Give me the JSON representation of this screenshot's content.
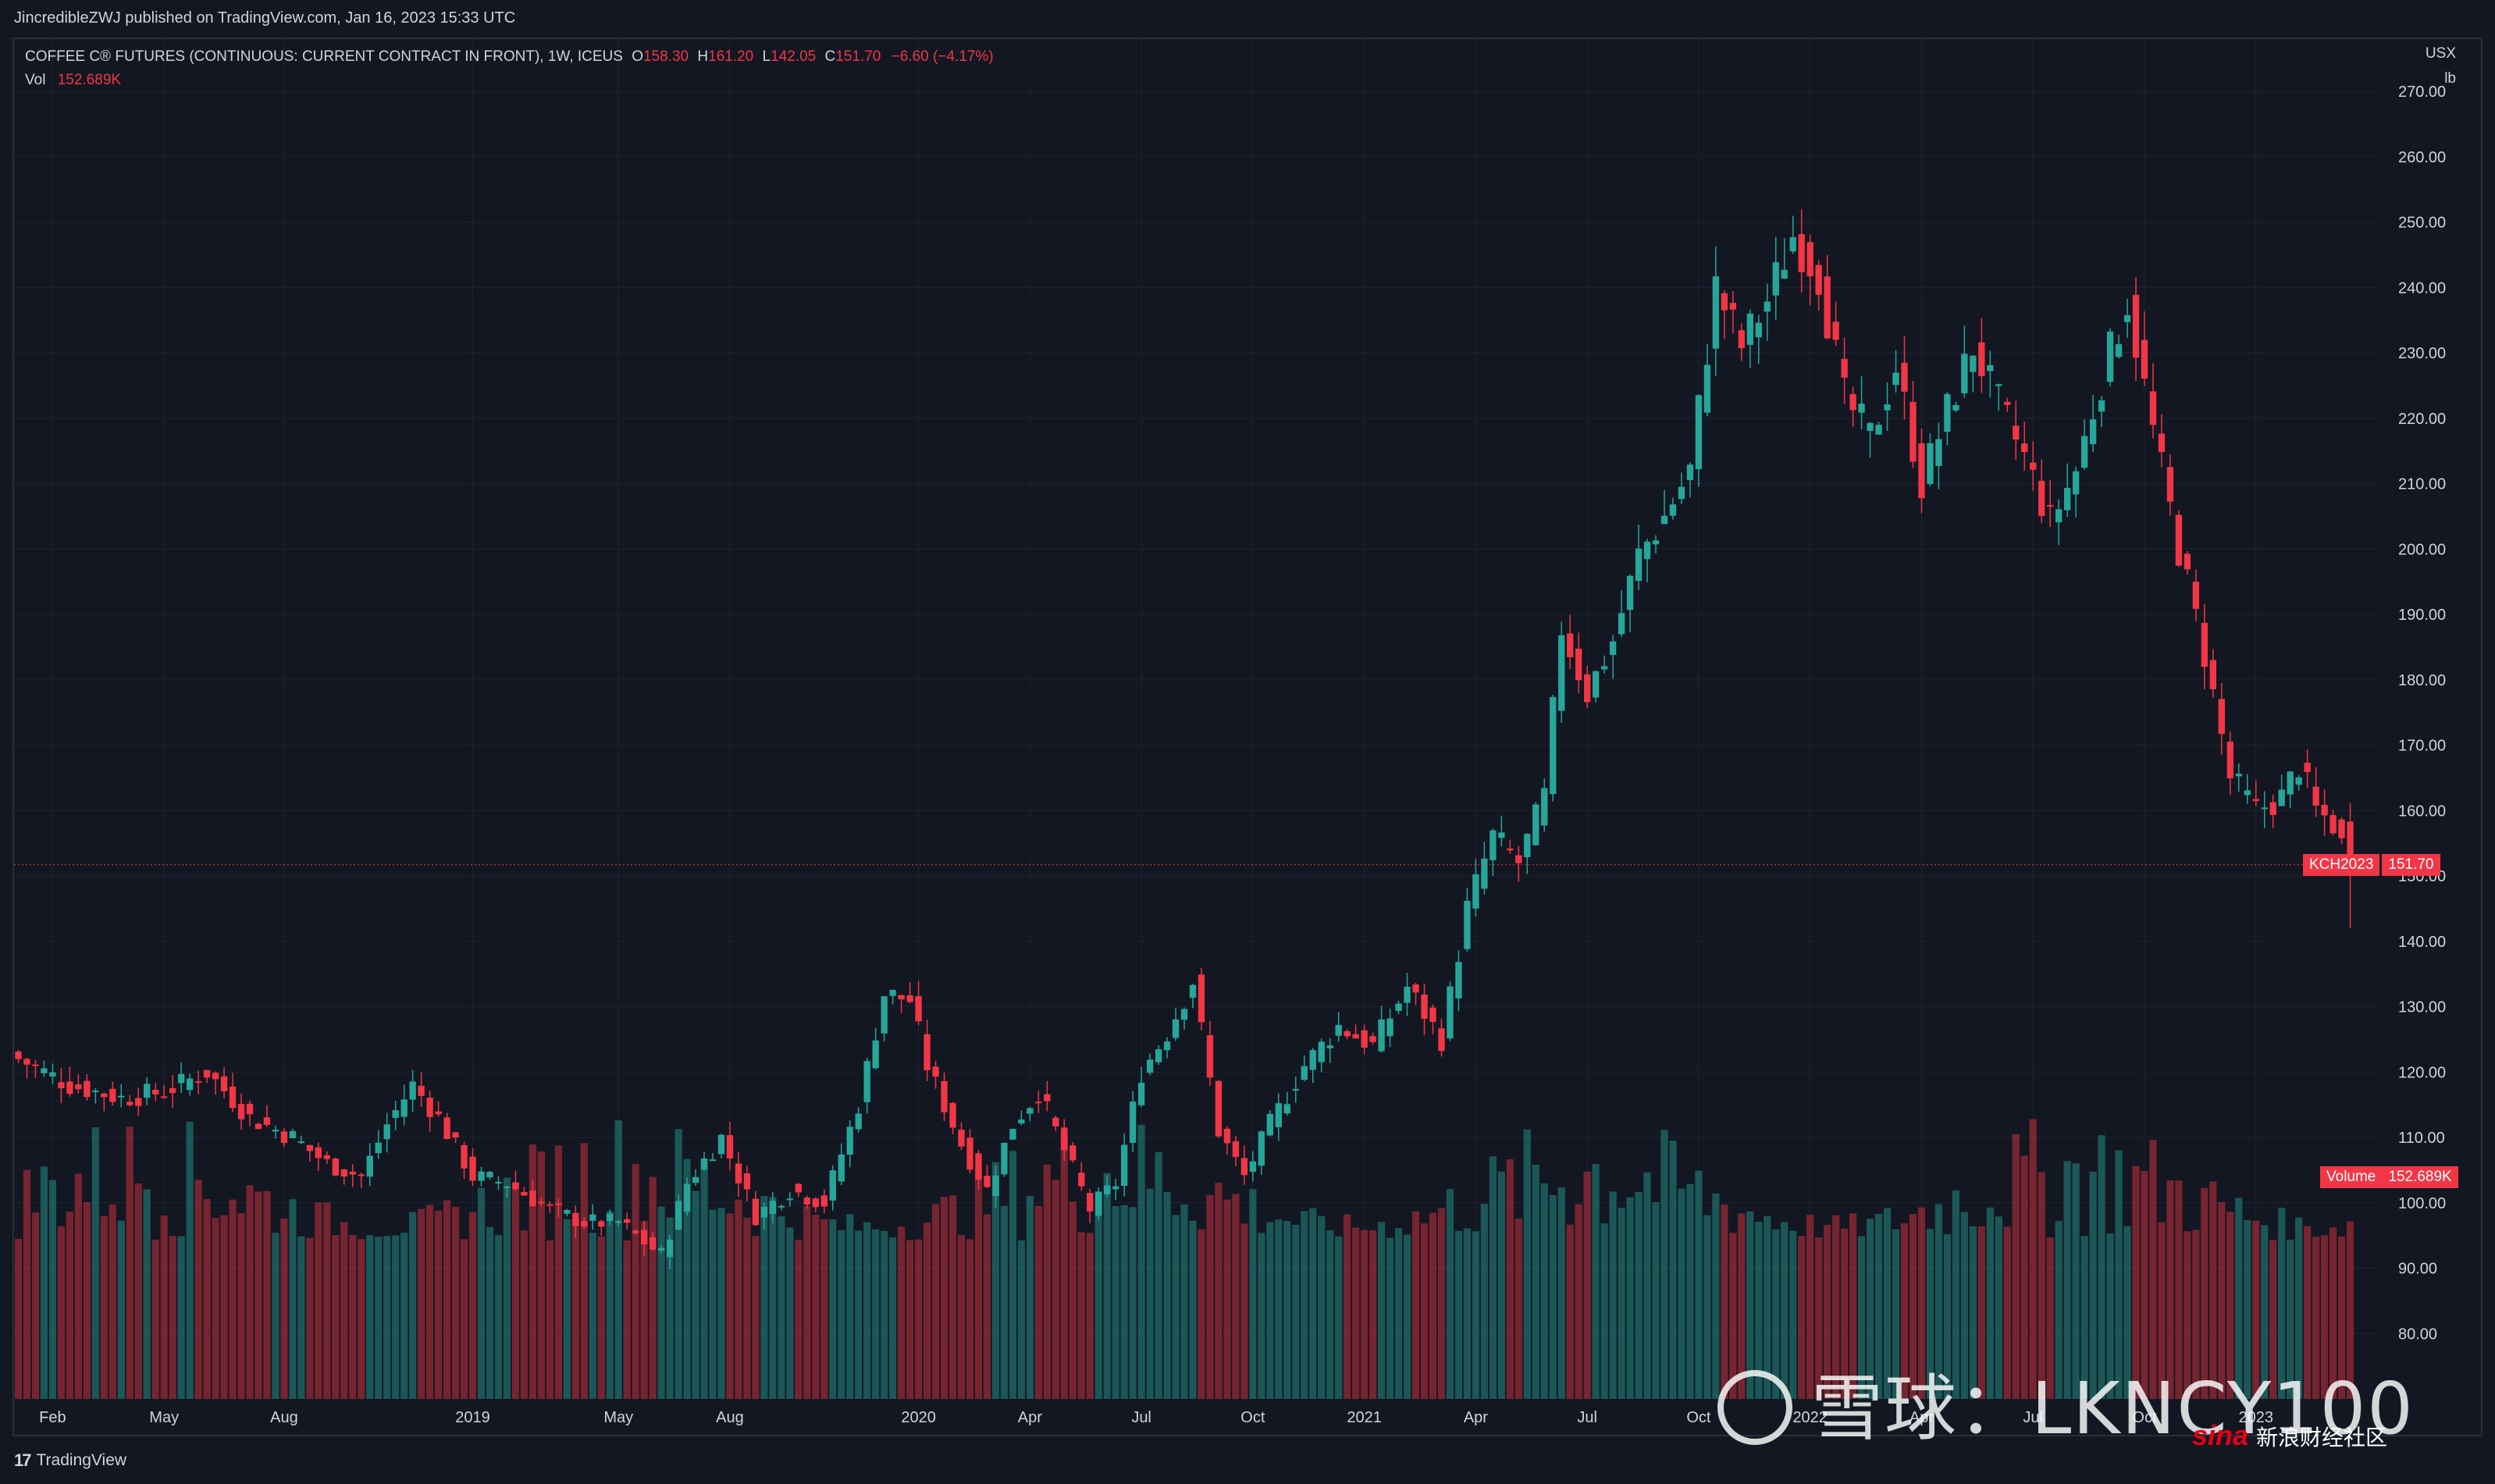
{
  "header": {
    "publisher_line": "JincredibleZWJ published on TradingView.com, Jan 16, 2023 15:33 UTC"
  },
  "legend": {
    "symbol_line": "COFFEE C® FUTURES (CONTINUOUS: CURRENT CONTRACT IN FRONT), 1W, ICEUS",
    "open_label": "O",
    "open": "158.30",
    "high_label": "H",
    "high": "161.20",
    "low_label": "L",
    "low": "142.05",
    "close_label": "C",
    "close": "151.70",
    "change": "−6.60 (−4.17%)",
    "vol_label": "Vol",
    "vol_value": "152.689K"
  },
  "price_axis": {
    "currency": "USX",
    "unit": "lb"
  },
  "price_tag": {
    "symbol": "KCH2023",
    "value": "151.70"
  },
  "volume_tag": {
    "label": "Volume",
    "value": "152.689K"
  },
  "footer": {
    "brand": "TradingView",
    "brand_mark": "17"
  },
  "watermark": {
    "text": "雪球：LKNCY100",
    "sina_logo": "sina",
    "sina_text": "新浪财经社区"
  },
  "colors": {
    "up": "#26a69a",
    "down": "#f23645",
    "background": "#131722",
    "grid": "#1f2330",
    "text": "#d1d4dc"
  },
  "chart_data": {
    "type": "candlestick",
    "title": "COFFEE C® FUTURES (CONTINUOUS: CURRENT CONTRACT IN FRONT), 1W, ICEUS",
    "interval": "1W",
    "y_ticks": [
      80,
      90,
      100,
      110,
      120,
      130,
      140,
      150,
      160,
      170,
      180,
      190,
      200,
      210,
      220,
      230,
      240,
      250,
      260,
      270
    ],
    "ylim": [
      70,
      278
    ],
    "x_tick_labels": [
      "Feb",
      "May",
      "Aug",
      "2019",
      "May",
      "Aug",
      "2020",
      "Apr",
      "Jul",
      "Oct",
      "2021",
      "Apr",
      "Jul",
      "Oct",
      "2022",
      "Apr",
      "Jul",
      "Oct",
      "2023"
    ],
    "x_tick_weeks": [
      4,
      17,
      31,
      53,
      70,
      83,
      105,
      118,
      131,
      144,
      157,
      170,
      183,
      196,
      209,
      222,
      235,
      248,
      261
    ],
    "grid": true,
    "x_start": "2018-01-01",
    "x_end": "2023-01-16",
    "week_count": 273,
    "weekly_close_anchors": [
      [
        0,
        122
      ],
      [
        6,
        118
      ],
      [
        12,
        116
      ],
      [
        17,
        117
      ],
      [
        22,
        120
      ],
      [
        27,
        113
      ],
      [
        32,
        110
      ],
      [
        36,
        106
      ],
      [
        40,
        104
      ],
      [
        43,
        112
      ],
      [
        46,
        118
      ],
      [
        49,
        113
      ],
      [
        53,
        104
      ],
      [
        57,
        103
      ],
      [
        62,
        99
      ],
      [
        66,
        97
      ],
      [
        70,
        97
      ],
      [
        75,
        92
      ],
      [
        78,
        103
      ],
      [
        82,
        110
      ],
      [
        86,
        98
      ],
      [
        90,
        102
      ],
      [
        94,
        100
      ],
      [
        98,
        115
      ],
      [
        101,
        132
      ],
      [
        104,
        131
      ],
      [
        106,
        121
      ],
      [
        110,
        109
      ],
      [
        113,
        102
      ],
      [
        116,
        112
      ],
      [
        119,
        117
      ],
      [
        122,
        108
      ],
      [
        125,
        99
      ],
      [
        128,
        103
      ],
      [
        131,
        120
      ],
      [
        134,
        126
      ],
      [
        137,
        134
      ],
      [
        140,
        111
      ],
      [
        143,
        104
      ],
      [
        146,
        112
      ],
      [
        150,
        121
      ],
      [
        154,
        127
      ],
      [
        158,
        124
      ],
      [
        162,
        133
      ],
      [
        166,
        125
      ],
      [
        169,
        145
      ],
      [
        172,
        156
      ],
      [
        175,
        152
      ],
      [
        178,
        162
      ],
      [
        180,
        188
      ],
      [
        183,
        178
      ],
      [
        186,
        186
      ],
      [
        189,
        199
      ],
      [
        192,
        205
      ],
      [
        195,
        212
      ],
      [
        198,
        240
      ],
      [
        201,
        231
      ],
      [
        204,
        238
      ],
      [
        207,
        248
      ],
      [
        210,
        242
      ],
      [
        213,
        223
      ],
      [
        216,
        217
      ],
      [
        219,
        228
      ],
      [
        222,
        210
      ],
      [
        225,
        221
      ],
      [
        228,
        231
      ],
      [
        231,
        222
      ],
      [
        234,
        214
      ],
      [
        237,
        204
      ],
      [
        240,
        212
      ],
      [
        243,
        226
      ],
      [
        246,
        238
      ],
      [
        249,
        218
      ],
      [
        252,
        200
      ],
      [
        255,
        184
      ],
      [
        258,
        165
      ],
      [
        261,
        160
      ],
      [
        264,
        162
      ],
      [
        266,
        167
      ],
      [
        268,
        160
      ],
      [
        270,
        158
      ],
      [
        272,
        151.7
      ]
    ],
    "last_candle": {
      "open": 158.3,
      "high": 161.2,
      "low": 142.05,
      "close": 151.7
    },
    "volume": {
      "last": "152.689K",
      "rel_range": [
        0.3,
        1.0
      ]
    }
  }
}
